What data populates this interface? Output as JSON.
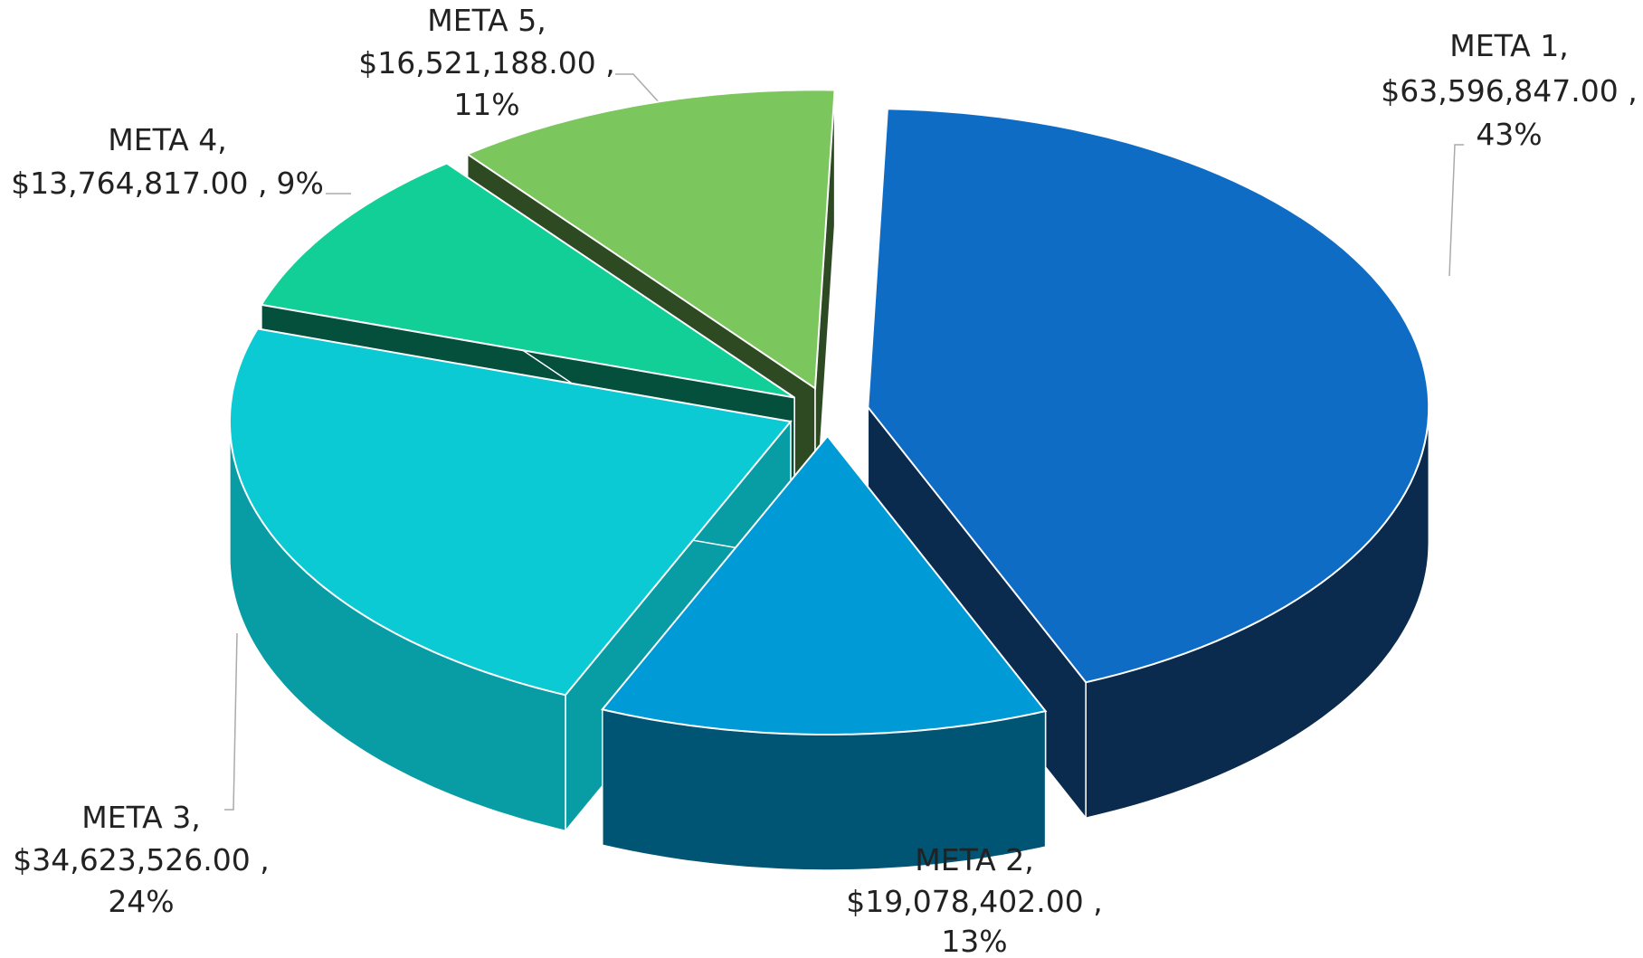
{
  "chart_data": {
    "type": "pie3d",
    "categories": [
      "META 1,",
      "META 2,",
      "META 3,",
      "META 4,",
      "META 5,"
    ],
    "values": [
      63596847,
      19078402,
      34623526,
      13764817,
      16521188
    ],
    "value_labels": [
      "$63,596,847.00 ,",
      "$19,078,402.00 ,",
      "$34,623,526.00 ,",
      "$13,764,817.00 ,",
      "$16,521,188.00 ,"
    ],
    "percent_labels": [
      "43%",
      "13%",
      "24%",
      "9%",
      "11%"
    ],
    "colors": [
      "#0f6cc4",
      "#009bd6",
      "#0bcad4",
      "#11cf96",
      "#7cc65e"
    ],
    "side_colors": [
      "#0a2a4e",
      "#005474",
      "#089ca4",
      "#05503c",
      "#2e4a22"
    ]
  }
}
